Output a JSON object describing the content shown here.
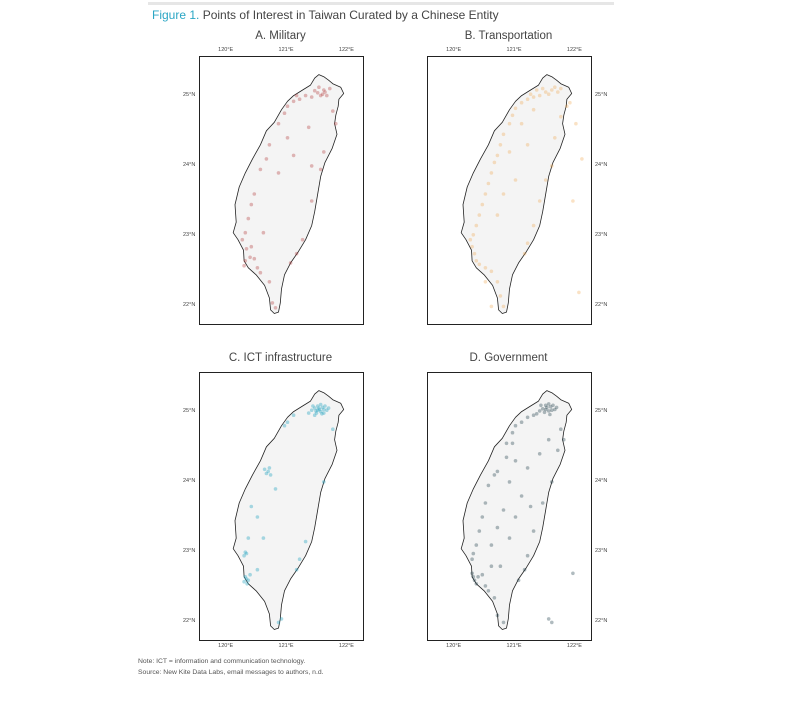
{
  "figure": {
    "label": "Figure 1.",
    "title": "Points of Interest in Taiwan Curated by a Chinese Entity"
  },
  "notes": {
    "note": "Note: ICT = information and communication technology.",
    "source": "Source: New Kite Data Labs, email messages to authors, n.d."
  },
  "axes": {
    "x_ticks": [
      "120°E",
      "121°E",
      "122°E"
    ],
    "y_ticks": [
      "25°N",
      "24°N",
      "23°N",
      "22°N"
    ]
  },
  "panels": [
    {
      "id": "military",
      "title": "A. Military",
      "color": "#b23a3a",
      "point_opacity": 0.35,
      "x_ticks_side": "top",
      "y_ticks_side": "left",
      "points": [
        [
          121.58,
          25.02
        ],
        [
          121.62,
          25.05
        ],
        [
          121.55,
          25.0
        ],
        [
          121.5,
          25.04
        ],
        [
          121.45,
          25.07
        ],
        [
          121.6,
          25.08
        ],
        [
          121.65,
          25.0
        ],
        [
          121.7,
          25.1
        ],
        [
          121.52,
          25.12
        ],
        [
          121.4,
          24.98
        ],
        [
          121.3,
          25.0
        ],
        [
          121.2,
          24.95
        ],
        [
          121.1,
          24.92
        ],
        [
          121.0,
          24.85
        ],
        [
          120.95,
          24.75
        ],
        [
          121.75,
          24.78
        ],
        [
          121.8,
          24.6
        ],
        [
          121.6,
          24.2
        ],
        [
          121.4,
          24.0
        ],
        [
          121.1,
          24.15
        ],
        [
          120.85,
          24.6
        ],
        [
          120.7,
          24.3
        ],
        [
          120.65,
          24.1
        ],
        [
          120.55,
          23.95
        ],
        [
          120.45,
          23.6
        ],
        [
          120.4,
          23.45
        ],
        [
          120.35,
          23.25
        ],
        [
          120.3,
          23.05
        ],
        [
          120.25,
          22.95
        ],
        [
          120.32,
          22.82
        ],
        [
          120.38,
          22.7
        ],
        [
          120.3,
          22.65
        ],
        [
          120.28,
          22.58
        ],
        [
          120.45,
          22.68
        ],
        [
          120.5,
          22.55
        ],
        [
          120.55,
          22.48
        ],
        [
          120.7,
          22.35
        ],
        [
          120.75,
          22.05
        ],
        [
          120.8,
          21.98
        ],
        [
          121.15,
          22.75
        ],
        [
          121.05,
          22.62
        ],
        [
          121.25,
          22.95
        ],
        [
          121.4,
          23.5
        ],
        [
          121.55,
          23.95
        ],
        [
          121.0,
          24.4
        ],
        [
          120.85,
          23.9
        ],
        [
          120.6,
          23.05
        ],
        [
          120.4,
          22.85
        ],
        [
          121.15,
          25.0
        ],
        [
          121.35,
          24.55
        ]
      ]
    },
    {
      "id": "transportation",
      "title": "B. Transportation",
      "color": "#f0a040",
      "point_opacity": 0.3,
      "x_ticks_side": "top",
      "y_ticks_side": "right",
      "points": [
        [
          121.5,
          25.05
        ],
        [
          121.55,
          25.02
        ],
        [
          121.6,
          25.08
        ],
        [
          121.45,
          25.1
        ],
        [
          121.4,
          25.0
        ],
        [
          121.3,
          24.98
        ],
        [
          121.2,
          24.95
        ],
        [
          121.65,
          25.12
        ],
        [
          121.7,
          25.05
        ],
        [
          121.75,
          25.1
        ],
        [
          121.35,
          25.08
        ],
        [
          121.25,
          25.02
        ],
        [
          121.1,
          24.9
        ],
        [
          121.0,
          24.82
        ],
        [
          120.95,
          24.72
        ],
        [
          120.9,
          24.6
        ],
        [
          120.8,
          24.45
        ],
        [
          120.75,
          24.3
        ],
        [
          120.7,
          24.15
        ],
        [
          120.65,
          24.05
        ],
        [
          120.6,
          23.9
        ],
        [
          120.55,
          23.75
        ],
        [
          120.5,
          23.6
        ],
        [
          120.45,
          23.45
        ],
        [
          120.4,
          23.3
        ],
        [
          120.35,
          23.15
        ],
        [
          120.3,
          23.02
        ],
        [
          120.25,
          22.95
        ],
        [
          120.28,
          22.85
        ],
        [
          120.32,
          22.75
        ],
        [
          120.35,
          22.65
        ],
        [
          120.4,
          22.6
        ],
        [
          120.5,
          22.55
        ],
        [
          120.6,
          22.5
        ],
        [
          120.7,
          22.35
        ],
        [
          120.75,
          22.15
        ],
        [
          120.8,
          22.0
        ],
        [
          121.15,
          22.75
        ],
        [
          121.2,
          22.9
        ],
        [
          121.3,
          23.15
        ],
        [
          121.4,
          23.5
        ],
        [
          121.5,
          23.8
        ],
        [
          121.6,
          24.0
        ],
        [
          121.65,
          24.4
        ],
        [
          121.75,
          24.7
        ],
        [
          121.85,
          24.85
        ],
        [
          121.9,
          24.9
        ],
        [
          120.9,
          24.2
        ],
        [
          121.0,
          23.8
        ],
        [
          120.8,
          23.6
        ],
        [
          121.2,
          24.3
        ],
        [
          120.7,
          23.3
        ],
        [
          122.0,
          24.6
        ],
        [
          122.1,
          24.1
        ],
        [
          121.95,
          23.5
        ],
        [
          122.05,
          22.2
        ],
        [
          120.5,
          22.35
        ],
        [
          120.6,
          22.0
        ],
        [
          121.1,
          24.6
        ],
        [
          121.3,
          24.8
        ]
      ]
    },
    {
      "id": "ict",
      "title": "C. ICT infrastructure",
      "color": "#2ea8c4",
      "point_opacity": 0.4,
      "x_ticks_side": "bottom",
      "y_ticks_side": "left",
      "points": [
        [
          121.5,
          25.02
        ],
        [
          121.52,
          25.05
        ],
        [
          121.55,
          25.0
        ],
        [
          121.58,
          25.06
        ],
        [
          121.6,
          25.03
        ],
        [
          121.45,
          25.05
        ],
        [
          121.48,
          24.98
        ],
        [
          121.62,
          25.08
        ],
        [
          121.65,
          25.02
        ],
        [
          121.55,
          25.1
        ],
        [
          121.4,
          25.02
        ],
        [
          121.35,
          24.98
        ],
        [
          121.42,
          25.08
        ],
        [
          121.68,
          25.05
        ],
        [
          121.5,
          25.08
        ],
        [
          121.57,
          24.97
        ],
        [
          121.45,
          24.95
        ],
        [
          121.6,
          24.98
        ],
        [
          121.53,
          25.03
        ],
        [
          121.47,
          25.01
        ],
        [
          121.1,
          24.95
        ],
        [
          121.0,
          24.85
        ],
        [
          120.95,
          24.8
        ],
        [
          120.68,
          24.15
        ],
        [
          120.7,
          24.2
        ],
        [
          120.65,
          24.12
        ],
        [
          120.72,
          24.1
        ],
        [
          120.62,
          24.18
        ],
        [
          120.4,
          23.65
        ],
        [
          120.5,
          23.5
        ],
        [
          120.35,
          23.2
        ],
        [
          120.3,
          23.0
        ],
        [
          120.28,
          22.95
        ],
        [
          120.32,
          22.98
        ],
        [
          120.3,
          22.65
        ],
        [
          120.32,
          22.62
        ],
        [
          120.35,
          22.6
        ],
        [
          120.28,
          22.58
        ],
        [
          120.33,
          22.55
        ],
        [
          120.38,
          22.68
        ],
        [
          120.5,
          22.75
        ],
        [
          120.6,
          23.2
        ],
        [
          121.15,
          22.75
        ],
        [
          121.2,
          22.9
        ],
        [
          121.3,
          23.15
        ],
        [
          121.6,
          24.0
        ],
        [
          121.75,
          24.75
        ],
        [
          120.8,
          23.9
        ],
        [
          120.9,
          22.05
        ],
        [
          120.85,
          22.0
        ]
      ]
    },
    {
      "id": "government",
      "title": "D. Government",
      "color": "#1c3c48",
      "point_opacity": 0.35,
      "x_ticks_side": "bottom",
      "y_ticks_side": "right",
      "points": [
        [
          121.5,
          25.03
        ],
        [
          121.52,
          25.06
        ],
        [
          121.55,
          25.01
        ],
        [
          121.58,
          25.07
        ],
        [
          121.6,
          25.02
        ],
        [
          121.45,
          25.04
        ],
        [
          121.48,
          24.99
        ],
        [
          121.62,
          25.09
        ],
        [
          121.65,
          25.03
        ],
        [
          121.55,
          25.11
        ],
        [
          121.4,
          25.01
        ],
        [
          121.35,
          24.97
        ],
        [
          121.42,
          25.09
        ],
        [
          121.68,
          25.06
        ],
        [
          121.5,
          25.09
        ],
        [
          121.57,
          24.96
        ],
        [
          121.3,
          24.95
        ],
        [
          121.2,
          24.92
        ],
        [
          121.1,
          24.85
        ],
        [
          121.0,
          24.8
        ],
        [
          120.95,
          24.7
        ],
        [
          120.85,
          24.55
        ],
        [
          121.75,
          24.75
        ],
        [
          121.8,
          24.6
        ],
        [
          121.6,
          24.0
        ],
        [
          121.45,
          23.7
        ],
        [
          121.3,
          23.3
        ],
        [
          121.2,
          22.95
        ],
        [
          121.15,
          22.75
        ],
        [
          121.05,
          22.6
        ],
        [
          120.7,
          24.15
        ],
        [
          120.65,
          24.1
        ],
        [
          120.55,
          23.95
        ],
        [
          120.5,
          23.7
        ],
        [
          120.45,
          23.5
        ],
        [
          120.4,
          23.3
        ],
        [
          120.35,
          23.1
        ],
        [
          120.3,
          22.98
        ],
        [
          120.28,
          22.9
        ],
        [
          120.3,
          22.65
        ],
        [
          120.32,
          22.6
        ],
        [
          120.35,
          22.55
        ],
        [
          120.38,
          22.65
        ],
        [
          120.28,
          22.7
        ],
        [
          120.45,
          22.68
        ],
        [
          120.5,
          22.52
        ],
        [
          120.55,
          22.45
        ],
        [
          120.65,
          22.35
        ],
        [
          120.7,
          22.1
        ],
        [
          120.8,
          22.0
        ],
        [
          121.0,
          24.3
        ],
        [
          120.9,
          24.0
        ],
        [
          121.1,
          23.8
        ],
        [
          120.8,
          23.6
        ],
        [
          120.7,
          23.35
        ],
        [
          120.6,
          23.1
        ],
        [
          120.75,
          22.8
        ],
        [
          120.9,
          23.2
        ],
        [
          121.0,
          23.5
        ],
        [
          121.2,
          24.2
        ],
        [
          121.4,
          24.4
        ],
        [
          121.55,
          24.6
        ],
        [
          121.95,
          22.7
        ],
        [
          121.55,
          22.05
        ],
        [
          121.6,
          22.0
        ],
        [
          120.95,
          24.55
        ],
        [
          121.25,
          23.65
        ],
        [
          120.6,
          22.8
        ],
        [
          121.7,
          24.45
        ],
        [
          120.85,
          24.35
        ]
      ]
    }
  ]
}
